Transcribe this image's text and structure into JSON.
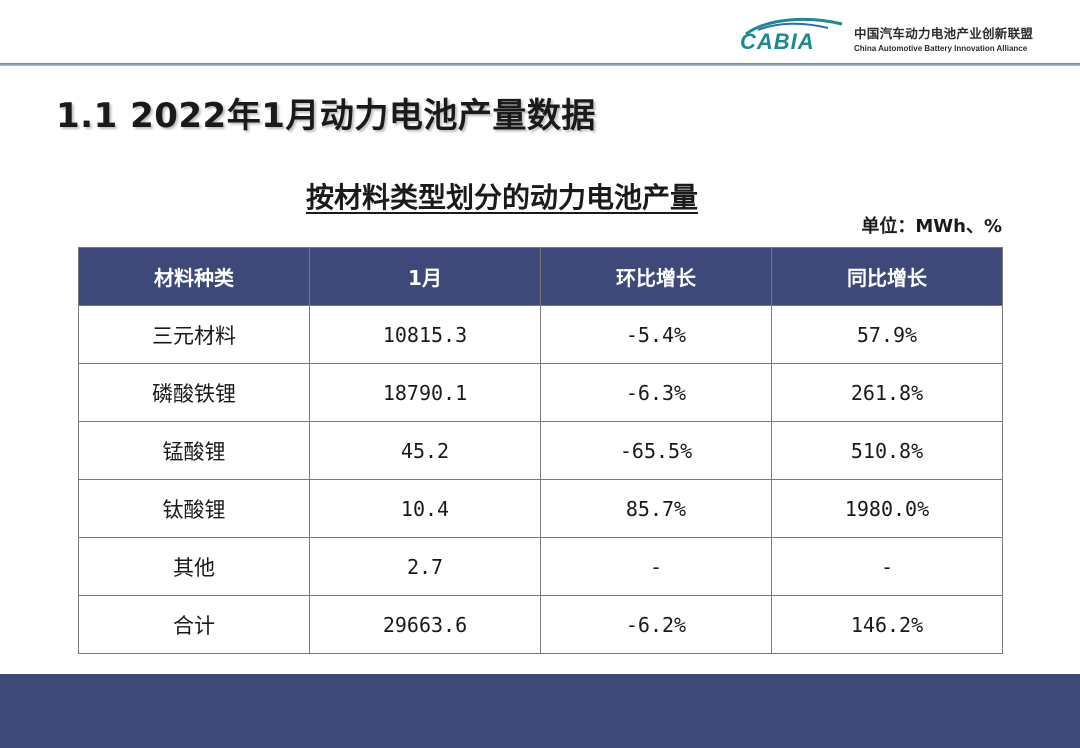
{
  "header": {
    "logo_brand": "CABIA",
    "logo_cn": "中国汽车动力电池产业创新联盟",
    "logo_en": "China Automotive Battery Innovation Alliance",
    "accent_color": "#3f4979"
  },
  "page_title": "1.1 2022年1月动力电池产量数据",
  "table_title": "按材料类型划分的动力电池产量",
  "unit_note": "单位：MWh、%",
  "table": {
    "columns": [
      "材料种类",
      "1月",
      "环比增长",
      "同比增长"
    ],
    "rows": [
      [
        "三元材料",
        "10815.3",
        "-5.4%",
        "57.9%"
      ],
      [
        "磷酸铁锂",
        "18790.1",
        "-6.3%",
        "261.8%"
      ],
      [
        "锰酸锂",
        "45.2",
        "-65.5%",
        "510.8%"
      ],
      [
        "钛酸锂",
        "10.4",
        "85.7%",
        "1980.0%"
      ],
      [
        "其他",
        "2.7",
        "-",
        "-"
      ],
      [
        "合计",
        "29663.6",
        "-6.2%",
        "146.2%"
      ]
    ]
  }
}
